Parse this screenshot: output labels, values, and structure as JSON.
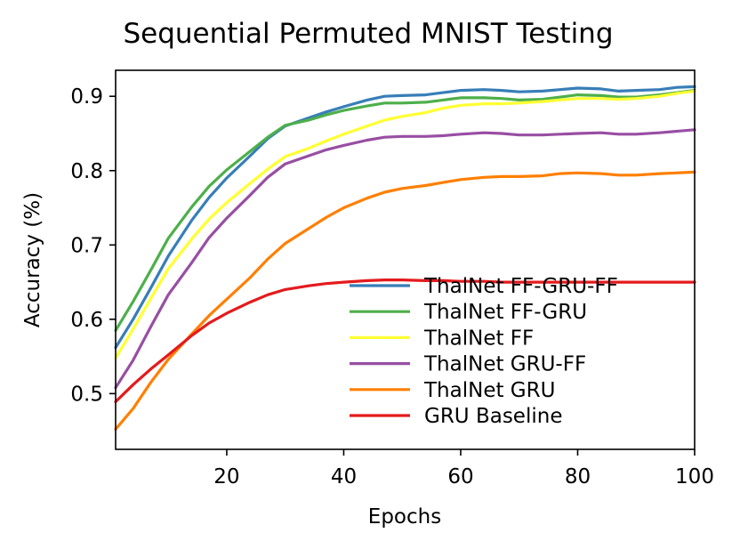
{
  "chart_data": {
    "type": "line",
    "title": "Sequential Permuted MNIST Testing",
    "xlabel": "Epochs",
    "ylabel": "Accuracy (%)",
    "xlim": [
      1,
      100
    ],
    "ylim": [
      0.425,
      0.935
    ],
    "xticks": [
      20,
      40,
      60,
      80,
      100
    ],
    "xtick_labels": [
      "20",
      "40",
      "60",
      "80",
      "100"
    ],
    "yticks": [
      0.5,
      0.6,
      0.7,
      0.8,
      0.9
    ],
    "ytick_labels": [
      "0.5",
      "0.6",
      "0.7",
      "0.8",
      "0.9"
    ],
    "grid": false,
    "legend_position": "lower-right",
    "x": [
      1,
      4,
      7,
      10,
      14,
      17,
      20,
      24,
      27,
      30,
      34,
      37,
      40,
      44,
      47,
      50,
      54,
      57,
      60,
      64,
      67,
      70,
      74,
      77,
      80,
      84,
      87,
      90,
      94,
      97,
      100
    ],
    "series": [
      {
        "name": "ThalNet FF-GRU-FF",
        "color": "#377eb8",
        "values": [
          0.562,
          0.6,
          0.642,
          0.685,
          0.733,
          0.764,
          0.79,
          0.82,
          0.843,
          0.86,
          0.871,
          0.879,
          0.886,
          0.895,
          0.9,
          0.901,
          0.902,
          0.905,
          0.908,
          0.909,
          0.908,
          0.906,
          0.907,
          0.909,
          0.911,
          0.91,
          0.907,
          0.908,
          0.909,
          0.912,
          0.913
        ]
      },
      {
        "name": "ThalNet FF-GRU",
        "color": "#4daf4a",
        "values": [
          0.585,
          0.624,
          0.666,
          0.709,
          0.751,
          0.779,
          0.801,
          0.826,
          0.845,
          0.861,
          0.868,
          0.875,
          0.881,
          0.887,
          0.891,
          0.891,
          0.892,
          0.895,
          0.898,
          0.898,
          0.897,
          0.895,
          0.896,
          0.899,
          0.902,
          0.901,
          0.899,
          0.899,
          0.902,
          0.905,
          0.908
        ]
      },
      {
        "name": "ThalNet FF",
        "color": "#ffff33",
        "values": [
          0.548,
          0.587,
          0.628,
          0.668,
          0.708,
          0.735,
          0.757,
          0.783,
          0.802,
          0.819,
          0.83,
          0.84,
          0.849,
          0.86,
          0.868,
          0.873,
          0.878,
          0.884,
          0.888,
          0.89,
          0.89,
          0.891,
          0.893,
          0.895,
          0.897,
          0.897,
          0.896,
          0.897,
          0.9,
          0.904,
          0.907
        ]
      },
      {
        "name": "ThalNet GRU-FF",
        "color": "#984ea3",
        "values": [
          0.508,
          0.545,
          0.59,
          0.633,
          0.676,
          0.71,
          0.736,
          0.767,
          0.791,
          0.809,
          0.82,
          0.828,
          0.834,
          0.841,
          0.845,
          0.846,
          0.846,
          0.847,
          0.849,
          0.851,
          0.85,
          0.848,
          0.848,
          0.849,
          0.85,
          0.851,
          0.849,
          0.849,
          0.851,
          0.853,
          0.855
        ]
      },
      {
        "name": "ThalNet GRU",
        "color": "#ff7f00",
        "values": [
          0.452,
          0.48,
          0.515,
          0.546,
          0.58,
          0.605,
          0.627,
          0.656,
          0.681,
          0.702,
          0.722,
          0.737,
          0.75,
          0.763,
          0.771,
          0.776,
          0.78,
          0.784,
          0.788,
          0.791,
          0.792,
          0.792,
          0.793,
          0.796,
          0.797,
          0.796,
          0.794,
          0.794,
          0.796,
          0.797,
          0.798
        ]
      },
      {
        "name": "GRU Baseline",
        "color": "#e41a1c",
        "values": [
          0.489,
          0.512,
          0.533,
          0.552,
          0.578,
          0.595,
          0.608,
          0.623,
          0.633,
          0.64,
          0.645,
          0.648,
          0.65,
          0.652,
          0.653,
          0.653,
          0.652,
          0.652,
          0.651,
          0.651,
          0.65,
          0.65,
          0.65,
          0.65,
          0.65,
          0.65,
          0.65,
          0.65,
          0.65,
          0.65,
          0.65
        ]
      }
    ]
  }
}
